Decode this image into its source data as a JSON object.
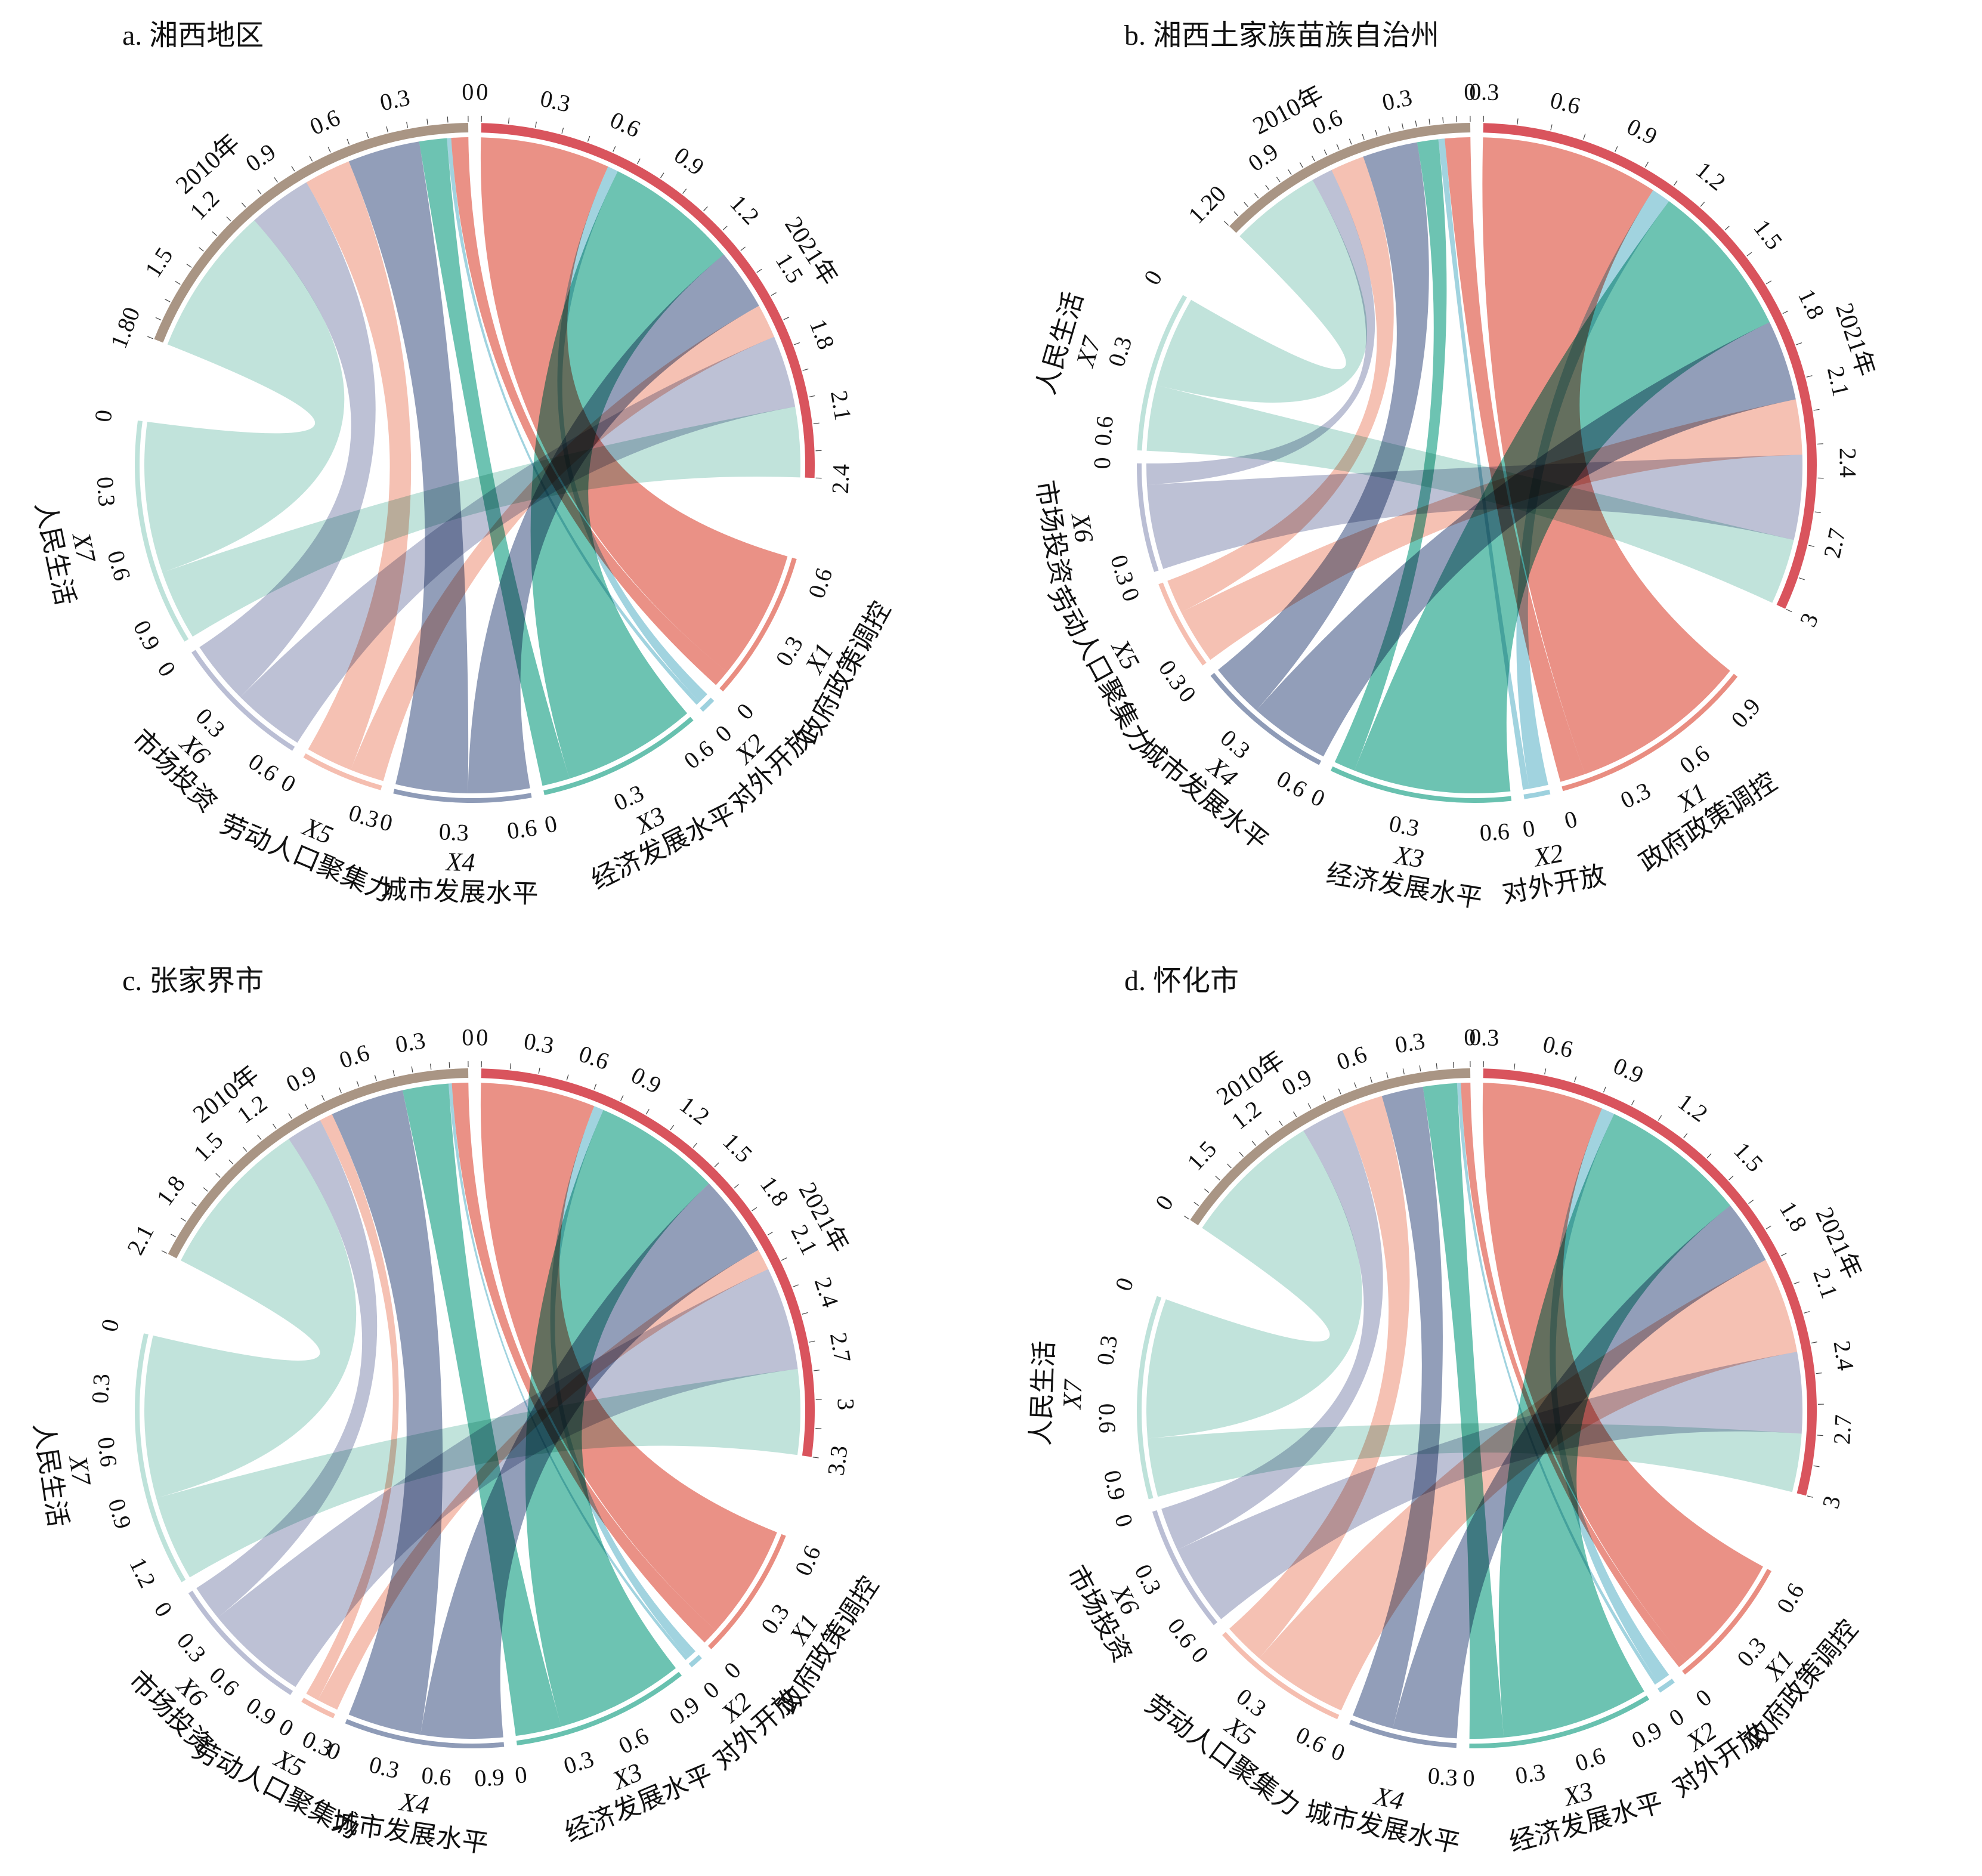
{
  "figure": {
    "background": "#ffffff",
    "colors": {
      "year2010": "#a99584",
      "year2021": "#d9545d",
      "X1": "#e5796b",
      "X2": "#8cc9d8",
      "X3": "#4db6a1",
      "X4": "#7a89aa",
      "X5": "#f3b3a2",
      "X6": "#aeb3cc",
      "X7": "#b3ddd3"
    }
  },
  "chart_data": [
    {
      "type": "chord",
      "title": "a. 湘西地区",
      "year_labels": {
        "start": "2010年",
        "end": "2021年"
      },
      "groups": [
        {
          "code": "X1",
          "name": "政府政策调控"
        },
        {
          "code": "X2",
          "name": "对外开放"
        },
        {
          "code": "X3",
          "name": "经济发展水平"
        },
        {
          "code": "X4",
          "name": "城市发展水平"
        },
        {
          "code": "X5",
          "name": "劳动人口聚集力"
        },
        {
          "code": "X6",
          "name": "市场投资"
        },
        {
          "code": "X7",
          "name": "人民生活"
        }
      ],
      "flows_2010": [
        0.08,
        0.02,
        0.13,
        0.34,
        0.22,
        0.3,
        0.71
      ],
      "flows_2021": [
        0.61,
        0.05,
        0.63,
        0.29,
        0.16,
        0.34,
        0.33
      ],
      "totals": [
        0.69,
        0.07,
        0.76,
        0.63,
        0.38,
        0.64,
        1.04
      ],
      "axis_2010": {
        "max": 1.8,
        "ticks": [
          "0",
          "0.3",
          "0.6",
          "0.9",
          "1.2",
          "1.5",
          "1.80"
        ]
      },
      "axis_2021": {
        "max": 2.41,
        "ticks": [
          "0",
          "0.3",
          "0.6",
          "0.9",
          "1.2",
          "1.5",
          "1.8",
          "2.1",
          "2.4"
        ]
      },
      "group_ticks": [
        [
          "0",
          "0.3",
          "0.6"
        ],
        [
          "0"
        ],
        [
          "0",
          "0.3",
          "0.6"
        ],
        [
          "0",
          "0.3",
          "0.6"
        ],
        [
          "0",
          "0.3"
        ],
        [
          "0",
          "0.3",
          "0.6"
        ],
        [
          "0",
          "0.3",
          "0.6",
          "0.9"
        ]
      ]
    },
    {
      "type": "chord",
      "title": "b. 湘西土家族苗族自治州",
      "year_labels": {
        "start": "2010年",
        "end": "2021年"
      },
      "groups": [
        {
          "code": "X1",
          "name": "政府政策调控"
        },
        {
          "code": "X2",
          "name": "对外开放"
        },
        {
          "code": "X3",
          "name": "经济发展水平"
        },
        {
          "code": "X4",
          "name": "城市发展水平"
        },
        {
          "code": "X5",
          "name": "劳动人口聚集力"
        },
        {
          "code": "X6",
          "name": "市场投资"
        },
        {
          "code": "X7",
          "name": "人民生活"
        }
      ],
      "flows_2010": [
        0.12,
        0.03,
        0.1,
        0.26,
        0.16,
        0.1,
        0.43
      ],
      "flows_2021": [
        0.84,
        0.09,
        0.74,
        0.38,
        0.26,
        0.4,
        0.31
      ],
      "totals": [
        0.96,
        0.12,
        0.84,
        0.64,
        0.42,
        0.5,
        0.74
      ],
      "axis_2010": {
        "max": 1.2,
        "ticks": [
          "0",
          "0.3",
          "0.6",
          "0.9",
          "1.20"
        ]
      },
      "axis_2021": {
        "max": 3.02,
        "ticks": [
          "0.3",
          "0.6",
          "0.9",
          "1.2",
          "1.5",
          "1.8",
          "2.1",
          "2.4",
          "2.7",
          "3"
        ]
      },
      "group_ticks": [
        [
          "0",
          "0.3",
          "0.6",
          "0.9"
        ],
        [
          "0"
        ],
        [
          "0",
          "0.3",
          "0.6"
        ],
        [
          "0",
          "0.3",
          "0.6"
        ],
        [
          "0",
          "0.3"
        ],
        [
          "0",
          "0.3"
        ],
        [
          "0",
          "0.3",
          "0.6"
        ]
      ]
    },
    {
      "type": "chord",
      "title": "c. 张家界市",
      "year_labels": {
        "start": "2010年",
        "end": "2021年"
      },
      "groups": [
        {
          "code": "X1",
          "name": "政府政策调控"
        },
        {
          "code": "X2",
          "name": "对外开放"
        },
        {
          "code": "X3",
          "name": "经济发展水平"
        },
        {
          "code": "X4",
          "name": "城市发展水平"
        },
        {
          "code": "X5",
          "name": "劳动人口聚集力"
        },
        {
          "code": "X6",
          "name": "市场投资"
        },
        {
          "code": "X7",
          "name": "人民生活"
        }
      ],
      "flows_2010": [
        0.1,
        0.02,
        0.28,
        0.45,
        0.08,
        0.22,
        0.99
      ],
      "flows_2021": [
        0.7,
        0.06,
        0.78,
        0.5,
        0.13,
        0.63,
        0.52
      ],
      "totals": [
        0.8,
        0.08,
        1.06,
        0.95,
        0.21,
        0.85,
        1.51
      ],
      "axis_2010": {
        "max": 2.14,
        "ticks": [
          "0",
          "0.3",
          "0.6",
          "0.9",
          "1.2",
          "1.5",
          "1.8",
          "2.1"
        ]
      },
      "axis_2021": {
        "max": 3.32,
        "ticks": [
          "0",
          "0.3",
          "0.6",
          "0.9",
          "1.2",
          "1.5",
          "1.8",
          "2.1",
          "2.4",
          "2.7",
          "3",
          "3.3"
        ]
      },
      "group_ticks": [
        [
          "0",
          "0.3",
          "0.6"
        ],
        [
          "0"
        ],
        [
          "0",
          "0.3",
          "0.6",
          "0.9"
        ],
        [
          "0",
          "0.3",
          "0.6",
          "0.9"
        ],
        [
          "0",
          "0.3"
        ],
        [
          "0",
          "0.3",
          "0.6",
          "0.9"
        ],
        [
          "0",
          "0.3",
          "0.6",
          "0.9",
          "1.2"
        ]
      ]
    },
    {
      "type": "chord",
      "title": "d. 怀化市",
      "year_labels": {
        "start": "2010年",
        "end": "2021年"
      },
      "groups": [
        {
          "code": "X1",
          "name": "政府政策调控"
        },
        {
          "code": "X2",
          "name": "对外开放"
        },
        {
          "code": "X3",
          "name": "经济发展水平"
        },
        {
          "code": "X4",
          "name": "城市发展水平"
        },
        {
          "code": "X5",
          "name": "劳动人口聚集力"
        },
        {
          "code": "X6",
          "name": "市场投资"
        },
        {
          "code": "X7",
          "name": "人民生活"
        }
      ],
      "flows_2010": [
        0.05,
        0.02,
        0.18,
        0.22,
        0.22,
        0.23,
        0.74
      ],
      "flows_2021": [
        0.64,
        0.07,
        0.78,
        0.34,
        0.51,
        0.43,
        0.31
      ],
      "totals": [
        0.69,
        0.09,
        0.96,
        0.56,
        0.73,
        0.66,
        1.05
      ],
      "axis_2010": {
        "max": 1.66,
        "ticks": [
          "0",
          "0.3",
          "0.6",
          "0.9",
          "1.2",
          "1.5",
          "0"
        ]
      },
      "axis_2021": {
        "max": 3.08,
        "ticks": [
          "0.3",
          "0.6",
          "0.9",
          "1.2",
          "1.5",
          "1.8",
          "2.1",
          "2.4",
          "2.7",
          "3"
        ]
      },
      "group_ticks": [
        [
          "0",
          "0.3",
          "0.6"
        ],
        [
          "0"
        ],
        [
          "0",
          "0.3",
          "0.6",
          "0.9"
        ],
        [
          "0",
          "0.3"
        ],
        [
          "0",
          "0.3",
          "0.6"
        ],
        [
          "0",
          "0.3",
          "0.6"
        ],
        [
          "0",
          "0.3",
          "0.6",
          "0.9"
        ]
      ]
    }
  ]
}
